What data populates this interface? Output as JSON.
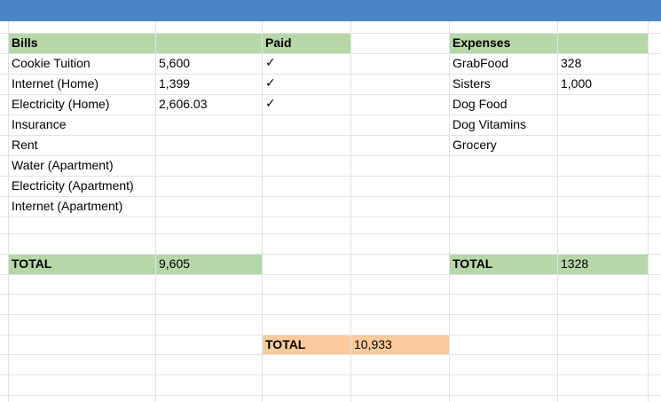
{
  "bills": {
    "header": "Bills",
    "paid_header": "Paid",
    "rows": [
      {
        "name": "Cookie Tuition",
        "amount": "5,600",
        "paid": "✓"
      },
      {
        "name": "Internet (Home)",
        "amount": "1,399",
        "paid": "✓"
      },
      {
        "name": "Electricity (Home)",
        "amount": "2,606.03",
        "paid": "✓"
      },
      {
        "name": "Insurance",
        "amount": "",
        "paid": ""
      },
      {
        "name": "Rent",
        "amount": "",
        "paid": ""
      },
      {
        "name": "Water (Apartment)",
        "amount": "",
        "paid": ""
      },
      {
        "name": "Electricity (Apartment)",
        "amount": "",
        "paid": ""
      },
      {
        "name": "Internet (Apartment)",
        "amount": "",
        "paid": ""
      }
    ],
    "total_label": "TOTAL",
    "total_value": "9,605"
  },
  "expenses": {
    "header": "Expenses",
    "rows": [
      {
        "name": "GrabFood",
        "amount": "328"
      },
      {
        "name": "Sisters",
        "amount": "1,000"
      },
      {
        "name": "Dog Food",
        "amount": ""
      },
      {
        "name": "Dog Vitamins",
        "amount": ""
      },
      {
        "name": "Grocery",
        "amount": ""
      }
    ],
    "total_label": "TOTAL",
    "total_value": "1328"
  },
  "grand_total": {
    "label": "TOTAL",
    "value": "10,933"
  },
  "colors": {
    "header_bar": "#4a86c5",
    "green_fill": "#b6d7a8",
    "orange_fill": "#f9cb9c",
    "gridline": "#e2e3e3"
  }
}
